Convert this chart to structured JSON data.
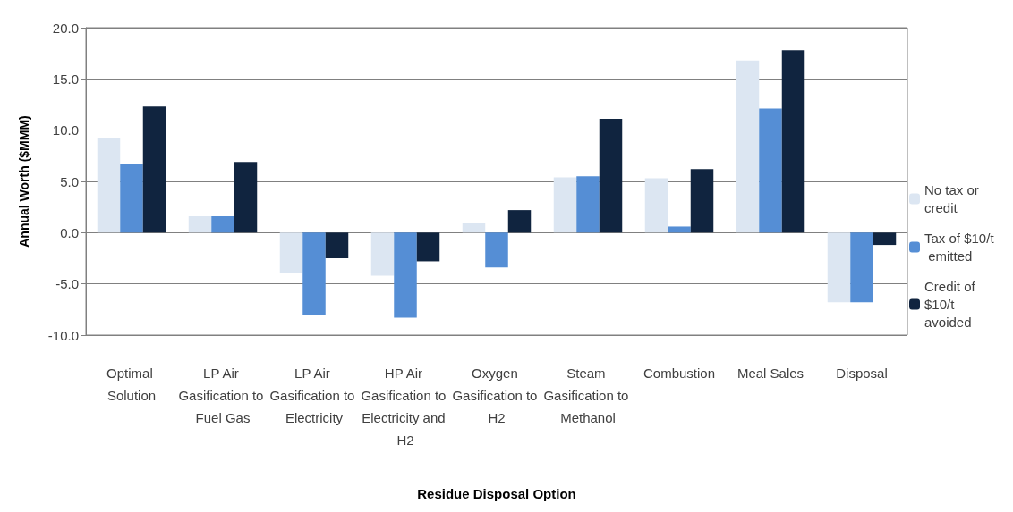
{
  "chart_data": {
    "type": "bar",
    "xlabel": "Residue Disposal Option",
    "ylabel": "Annual Worth ($MMM)",
    "categories": [
      "Optimal Solution",
      "LP Air Gasification to Fuel Gas",
      "LP Air Gasification to Electricity",
      "HP Air Gasification to Electricity and H2",
      "Oxygen Gasification to H2",
      "Steam Gasification to Methanol",
      "Combustion",
      "Meal Sales",
      "Disposal"
    ],
    "series": [
      {
        "name": "No tax or credit",
        "color": "#dce6f2",
        "values": [
          9.2,
          1.6,
          -3.9,
          -4.2,
          0.9,
          5.4,
          5.3,
          16.8,
          -6.8
        ]
      },
      {
        "name": "Tax of $10/t emitted",
        "color": "#558ed5",
        "values": [
          6.7,
          1.6,
          -8.0,
          -8.3,
          -3.4,
          5.5,
          0.6,
          12.1,
          -6.8
        ]
      },
      {
        "name": "Credit of $10/t avoided",
        "color": "#10243f",
        "values": [
          12.3,
          6.9,
          -2.5,
          -2.8,
          2.2,
          11.1,
          6.2,
          17.8,
          -1.2
        ]
      }
    ],
    "ylim": [
      -10,
      20
    ],
    "yticks": [
      {
        "value": -10,
        "label": "-10.0"
      },
      {
        "value": -5,
        "label": "-5.0"
      },
      {
        "value": 0,
        "label": "0.0"
      },
      {
        "value": 5,
        "label": "5.0"
      },
      {
        "value": 10,
        "label": "10.0"
      },
      {
        "value": 15,
        "label": "15.0"
      },
      {
        "value": 20,
        "label": "20.0"
      }
    ],
    "grid": "y",
    "legend": "right"
  }
}
